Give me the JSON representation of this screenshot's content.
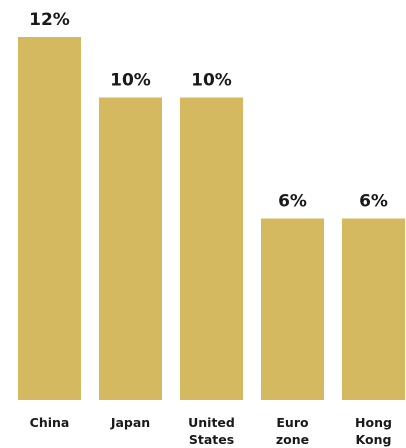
{
  "chart_data": {
    "type": "bar",
    "categories": [
      [
        "China"
      ],
      [
        "Japan"
      ],
      [
        "United",
        "States"
      ],
      [
        "Euro",
        "zone"
      ],
      [
        "Hong",
        "Kong"
      ]
    ],
    "values": [
      12,
      10,
      10,
      6,
      6
    ],
    "value_labels": [
      "12%",
      "10%",
      "10%",
      "6%",
      "6%"
    ],
    "ylim": [
      0,
      12
    ],
    "grid": false,
    "legend": "none",
    "bar_color": "#d4b961"
  }
}
